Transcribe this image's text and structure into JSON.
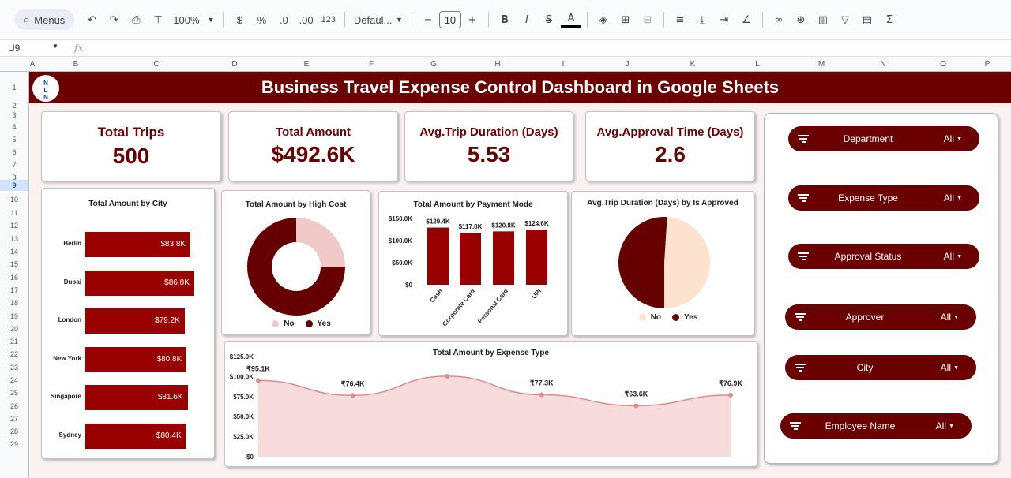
{
  "toolbar": {
    "menus": "Menus",
    "zoom": "100%",
    "currency": "$",
    "percent": "%",
    "dec_less": ".0",
    "dec_more": ".00",
    "format123": "123",
    "font": "Defaul...",
    "font_size": "10"
  },
  "formula_bar": {
    "cell": "U9",
    "fx": "fx"
  },
  "columns": [
    "A",
    "B",
    "C",
    "D",
    "E",
    "F",
    "G",
    "H",
    "I",
    "J",
    "K",
    "L",
    "M",
    "N",
    "O",
    "P"
  ],
  "rows": [
    "1",
    "2",
    "3",
    "4",
    "5",
    "6",
    "7",
    "8",
    "9",
    "10",
    "11",
    "12",
    "13",
    "14",
    "15",
    "16",
    "17",
    "18",
    "19",
    "20",
    "21",
    "22",
    "23",
    "24",
    "25",
    "26",
    "27",
    "28",
    "29"
  ],
  "dashboard": {
    "title": "Business Travel Expense Control Dashboard in Google Sheets",
    "logo_text": [
      "N",
      "L",
      "N"
    ],
    "kpis": [
      {
        "label": "Total Trips",
        "value": "500"
      },
      {
        "label": "Total Amount",
        "value": "$492.6K"
      },
      {
        "label": "Avg.Trip Duration (Days)",
        "value": "5.53"
      },
      {
        "label": "Avg.Approval Time (Days)",
        "value": "2.6"
      }
    ]
  },
  "chart_data": [
    {
      "type": "bar",
      "orientation": "horizontal",
      "title": "Total Amount by City",
      "categories": [
        "Berlin",
        "Dubai",
        "London",
        "New York",
        "Singapore",
        "Sydney"
      ],
      "values": [
        83.8,
        86.8,
        79.2,
        80.8,
        81.6,
        80.4
      ],
      "labels": [
        "$83.8K",
        "$86.8K",
        "$79.2K",
        "$80.8K",
        "$81.6K",
        "$80.4K"
      ],
      "color": "#990000"
    },
    {
      "type": "pie",
      "variant": "donut",
      "title": "Total Amount by High Cost",
      "categories": [
        "No",
        "Yes"
      ],
      "values": [
        25,
        75
      ],
      "colors": [
        "#f2c9c9",
        "#660000"
      ]
    },
    {
      "type": "bar",
      "title": "Total Amount by Payment Mode",
      "categories": [
        "Cash",
        "Corporate Card",
        "Personal Card",
        "UPI"
      ],
      "values": [
        129.4,
        117.8,
        120.8,
        124.6
      ],
      "labels": [
        "$129.4K",
        "$117.8K",
        "$120.8K",
        "$124.6K"
      ],
      "y_ticks": [
        "$150.0K",
        "$100.0K",
        "$50.0K",
        "$0"
      ],
      "ylim": [
        0,
        150
      ],
      "color": "#990000"
    },
    {
      "type": "pie",
      "title": "Avg.Trip Duration (Days) by Is Approved",
      "categories": [
        "No",
        "Yes"
      ],
      "values": [
        49,
        51
      ],
      "colors": [
        "#fde3cf",
        "#660000"
      ]
    },
    {
      "type": "area",
      "smooth": true,
      "title": "Total Amount by Expense Type",
      "values": [
        95.1,
        76.4,
        100.5,
        77.3,
        63.6,
        76.9
      ],
      "labels": [
        "₹95.1K",
        "₹76.4K",
        "",
        "₹77.3K",
        "₹63.6K",
        "₹76.9K"
      ],
      "y_ticks": [
        "$125.0K",
        "$100.0K",
        "$75.0K",
        "$50.0K",
        "$25.0K",
        "$0"
      ],
      "ylim": [
        0,
        125
      ],
      "line_color": "#e08a8a",
      "fill_color": "#f8dcdc"
    }
  ],
  "filters": [
    {
      "label": "Department",
      "value": "All"
    },
    {
      "label": "Expense Type",
      "value": "All"
    },
    {
      "label": "Approval Status",
      "value": "All"
    },
    {
      "label": "Approver",
      "value": "All"
    },
    {
      "label": "City",
      "value": "All"
    },
    {
      "label": "Employee Name",
      "value": "All"
    }
  ]
}
